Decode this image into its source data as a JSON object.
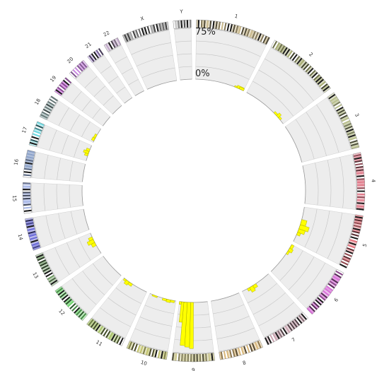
{
  "chart_data": {
    "type": "circos",
    "scale_labels": [
      "75%",
      "0%"
    ],
    "ylim": [
      0,
      75
    ],
    "chromosomes": [
      {
        "name": "1",
        "size": 249
      },
      {
        "name": "2",
        "size": 243
      },
      {
        "name": "3",
        "size": 198
      },
      {
        "name": "4",
        "size": 191
      },
      {
        "name": "5",
        "size": 181
      },
      {
        "name": "6",
        "size": 171
      },
      {
        "name": "7",
        "size": 159
      },
      {
        "name": "8",
        "size": 146
      },
      {
        "name": "9",
        "size": 141
      },
      {
        "name": "10",
        "size": 136
      },
      {
        "name": "11",
        "size": 135
      },
      {
        "name": "12",
        "size": 133
      },
      {
        "name": "13",
        "size": 115
      },
      {
        "name": "14",
        "size": 107
      },
      {
        "name": "15",
        "size": 102
      },
      {
        "name": "16",
        "size": 90
      },
      {
        "name": "17",
        "size": 81
      },
      {
        "name": "18",
        "size": 78
      },
      {
        "name": "19",
        "size": 59
      },
      {
        "name": "20",
        "size": 63
      },
      {
        "name": "21",
        "size": 48
      },
      {
        "name": "22",
        "size": 51
      },
      {
        "name": "X",
        "size": 155
      },
      {
        "name": "Y",
        "size": 59
      }
    ],
    "colors": {
      "1": "#c9b88a",
      "2": "#a8ad72",
      "3": "#b8be8c",
      "4": "#e07a8a",
      "5": "#e2707a",
      "6": "#d86fd8",
      "7": "#c9a3b0",
      "8": "#d9b77a",
      "9": "#c9c48a",
      "10": "#c2c36e",
      "11": "#a7c266",
      "12": "#6bd46b",
      "13": "#6f9a62",
      "14": "#6a6ad8",
      "15": "#a8b8e8",
      "16": "#8aa0c8",
      "17": "#6fd8e0",
      "18": "#9fb8b8",
      "19": "#d070e0",
      "20": "#c888e0",
      "21": "#b090e0",
      "22": "#c0a8c8",
      "X": "#a0a0a0",
      "Y": "#c8c8c8",
      "bars": "#ffff00"
    },
    "series": [
      {
        "chr": "1",
        "bins": [
          [
            0.74,
            0.97,
            0
          ],
          [
            0.8,
            0.99,
            2
          ],
          [
            0.85,
            0.99,
            4
          ],
          [
            0.9,
            1.0,
            3
          ]
        ]
      },
      {
        "chr": "2",
        "bins": [
          [
            0.7,
            0.78,
            3
          ],
          [
            0.78,
            0.84,
            6
          ],
          [
            0.84,
            0.9,
            3
          ]
        ]
      },
      {
        "chr": "5",
        "bins": [
          [
            0.35,
            0.5,
            8
          ],
          [
            0.5,
            0.62,
            14
          ],
          [
            0.62,
            0.72,
            10
          ],
          [
            0.72,
            0.8,
            5
          ]
        ]
      },
      {
        "chr": "6",
        "bins": [
          [
            0.0,
            0.12,
            4
          ],
          [
            0.12,
            0.22,
            6
          ],
          [
            0.22,
            0.32,
            3
          ]
        ]
      },
      {
        "chr": "7",
        "bins": [
          [
            0.5,
            0.62,
            5
          ],
          [
            0.62,
            0.74,
            8
          ],
          [
            0.74,
            0.82,
            4
          ]
        ]
      },
      {
        "chr": "9",
        "bins": [
          [
            0.5,
            0.6,
            68
          ],
          [
            0.6,
            0.72,
            66
          ],
          [
            0.72,
            0.84,
            64
          ],
          [
            0.84,
            0.93,
            30
          ],
          [
            0.93,
            1.0,
            4
          ]
        ]
      },
      {
        "chr": "10",
        "bins": [
          [
            0.05,
            0.2,
            3
          ],
          [
            0.2,
            0.35,
            4
          ],
          [
            0.35,
            0.5,
            3
          ],
          [
            0.7,
            0.9,
            2
          ]
        ]
      },
      {
        "chr": "11",
        "bins": [
          [
            0.6,
            0.75,
            4
          ],
          [
            0.75,
            0.88,
            6
          ],
          [
            0.88,
            0.97,
            3
          ]
        ]
      },
      {
        "chr": "13",
        "bins": [
          [
            0.4,
            0.55,
            6
          ],
          [
            0.55,
            0.7,
            10
          ],
          [
            0.7,
            0.82,
            6
          ]
        ]
      },
      {
        "chr": "17",
        "bins": [
          [
            0.3,
            0.45,
            5
          ],
          [
            0.45,
            0.6,
            8
          ],
          [
            0.6,
            0.75,
            5
          ]
        ]
      },
      {
        "chr": "18",
        "bins": [
          [
            0.1,
            0.3,
            4
          ],
          [
            0.3,
            0.55,
            3
          ]
        ]
      }
    ]
  }
}
